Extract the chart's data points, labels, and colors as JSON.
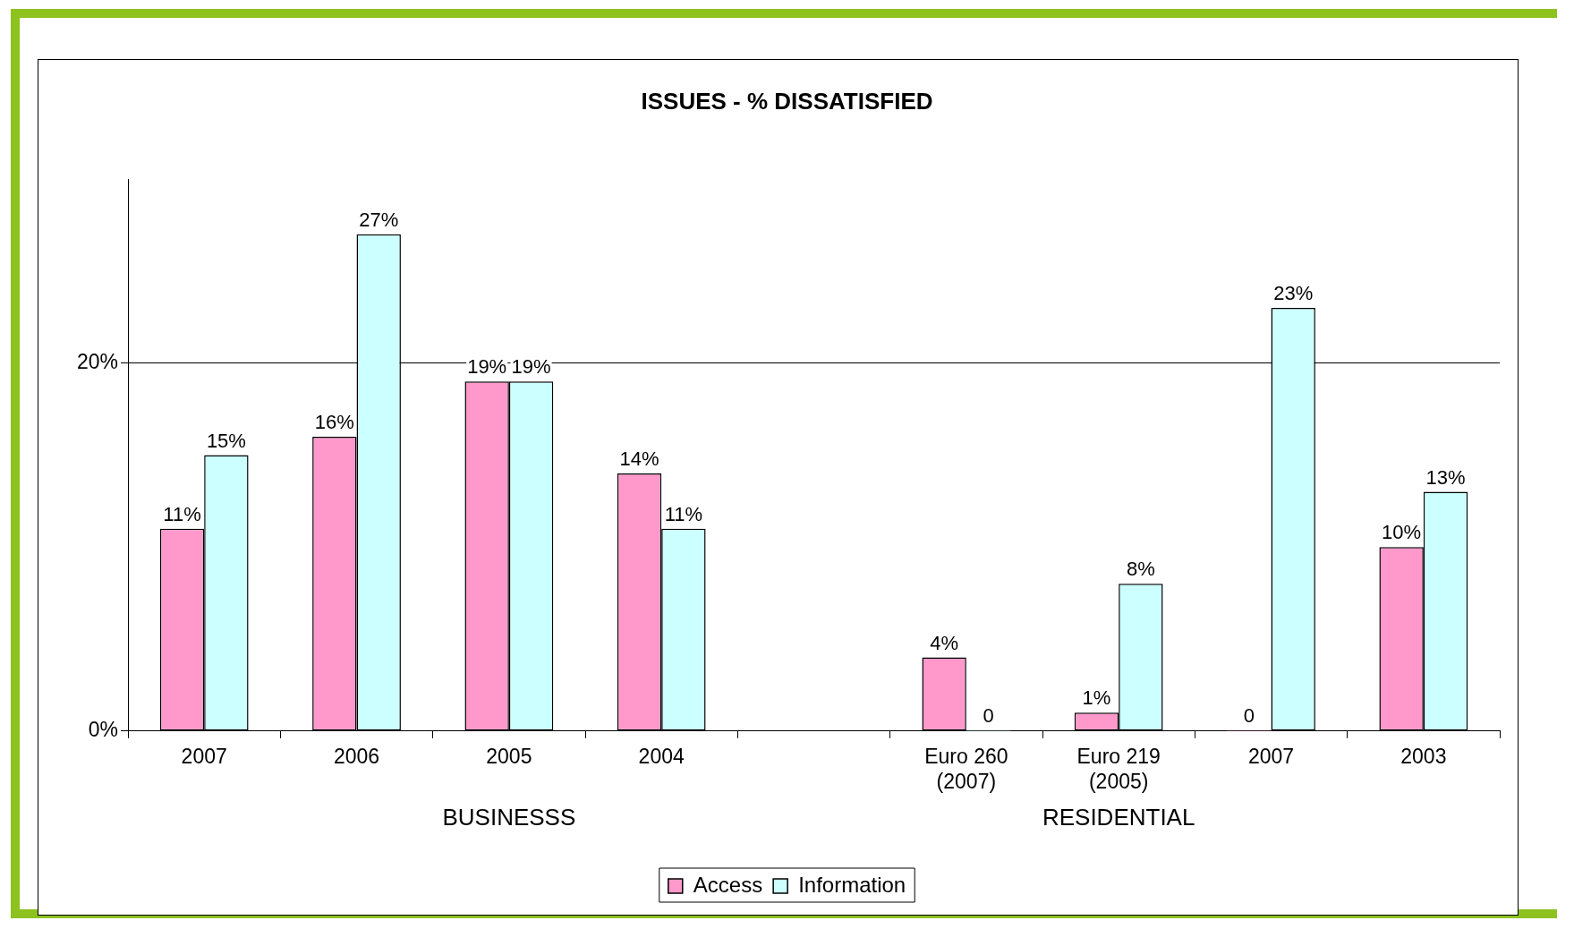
{
  "chart_data": {
    "type": "bar",
    "title": "ISSUES - % DISSATISFIED",
    "categories": [
      "2007",
      "2006",
      "2005",
      "2004",
      null,
      "Euro 260 (2007)",
      "Euro 219 (2005)",
      "2007",
      "2003"
    ],
    "series": [
      {
        "name": "Access",
        "color": "#ff99cc",
        "values": [
          11,
          16,
          19,
          14,
          null,
          4,
          1,
          0,
          10
        ],
        "value_labels": [
          "11%",
          "16%",
          "19%",
          "14%",
          null,
          "4%",
          "1%",
          "0",
          "10%"
        ]
      },
      {
        "name": "Information",
        "color": "#ccffff",
        "values": [
          15,
          27,
          19,
          11,
          null,
          0,
          8,
          23,
          13
        ],
        "value_labels": [
          "15%",
          "27%",
          "19%",
          "11%",
          null,
          "0",
          "8%",
          "23%",
          "13%"
        ]
      }
    ],
    "ylim": [
      0,
      30
    ],
    "yticks": [
      {
        "value": 0,
        "label": "0%"
      },
      {
        "value": 20,
        "label": "20%"
      }
    ],
    "grid": "y",
    "legend": "bottom",
    "annotations": [
      "BUSINESSS",
      "RESIDENTIAL"
    ]
  }
}
